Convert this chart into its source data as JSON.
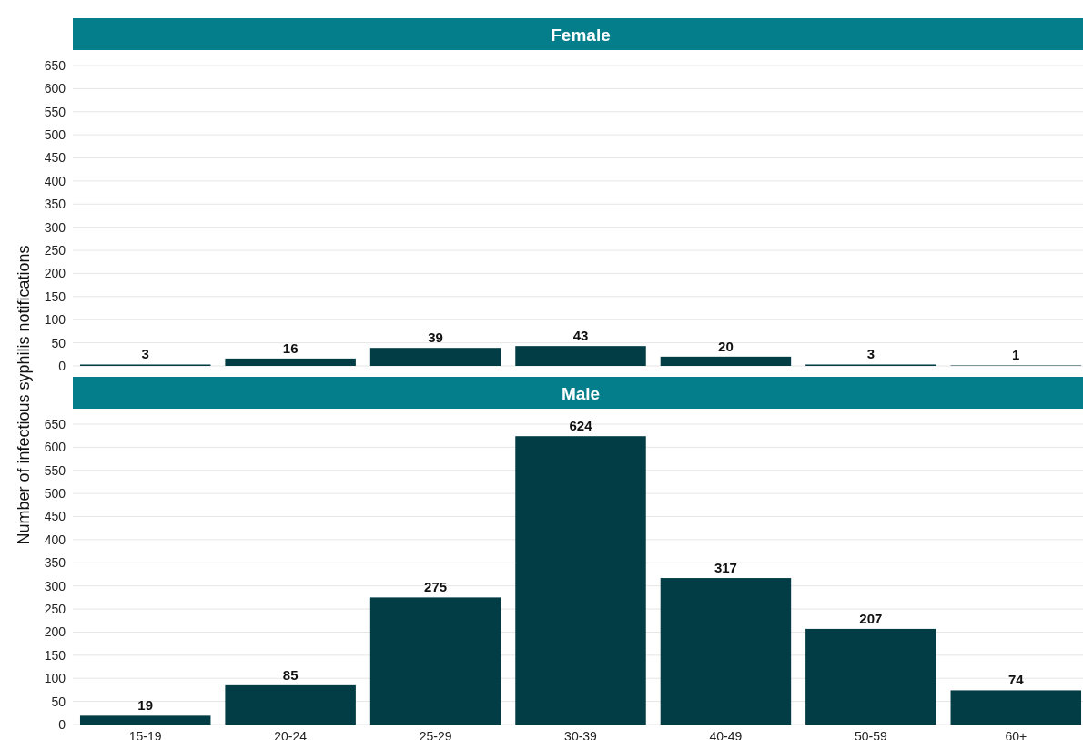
{
  "chart_data": [
    {
      "type": "bar",
      "title": "Female",
      "ylabel": "Number of infectious syphilis notifications",
      "categories": [
        null,
        null,
        null,
        null,
        null,
        null,
        null
      ],
      "series": [
        {
          "color": "#023d45",
          "values": [
            3,
            16,
            39,
            43,
            20,
            3,
            1
          ]
        }
      ],
      "ylim": [
        0,
        650
      ],
      "yticks": [
        0,
        50,
        100,
        150,
        200,
        250,
        300,
        350,
        400,
        450,
        500,
        550,
        600,
        650
      ],
      "grid": "y",
      "data_labels": true,
      "tick_labels": "y"
    },
    {
      "type": "bar",
      "title": "Male",
      "categories": [
        "15-19",
        "20-24",
        "25-29",
        "30-39",
        "40-49",
        "50-59",
        "60+"
      ],
      "series": [
        {
          "color": "#023d45",
          "values": [
            19,
            85,
            275,
            624,
            317,
            207,
            74
          ]
        }
      ],
      "ylim": [
        0,
        650
      ],
      "yticks": [
        0,
        50,
        100,
        150,
        200,
        250,
        300,
        350,
        400,
        450,
        500,
        550,
        600,
        650
      ],
      "grid": "y",
      "data_labels": true
    }
  ]
}
